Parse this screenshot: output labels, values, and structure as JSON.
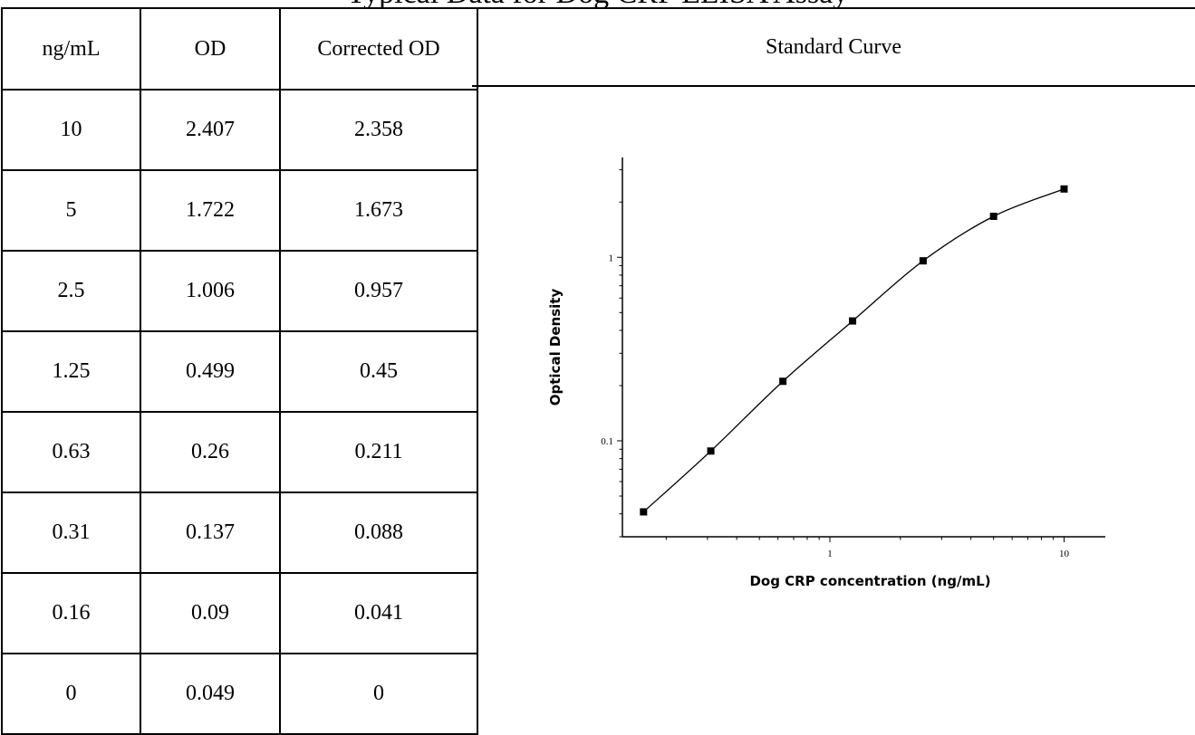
{
  "title": "Typical Data for Dog CRP ELISA Assay",
  "table": {
    "headers": [
      "ng/mL",
      "OD",
      "Corrected OD"
    ],
    "rows": [
      [
        "10",
        "2.407",
        "2.358"
      ],
      [
        "5",
        "1.722",
        "1.673"
      ],
      [
        "2.5",
        "1.006",
        "0.957"
      ],
      [
        "1.25",
        "0.499",
        "0.45"
      ],
      [
        "0.63",
        "0.26",
        "0.211"
      ],
      [
        "0.31",
        "0.137",
        "0.088"
      ],
      [
        "0.16",
        "0.09",
        "0.041"
      ],
      [
        "0",
        "0.049",
        "0"
      ]
    ]
  },
  "curve_header": "Standard Curve",
  "chart_data": {
    "type": "scatter",
    "title": "Standard Curve",
    "xlabel": "Dog CRP concentration (ng/mL)",
    "ylabel": "Optical Density",
    "xscale": "log",
    "yscale": "log",
    "xlim": [
      0.13,
      15
    ],
    "ylim": [
      0.03,
      3.5
    ],
    "xticks": [
      1,
      10
    ],
    "xtick_labels": [
      "1",
      "10"
    ],
    "yticks": [
      0.1,
      1
    ],
    "ytick_labels": [
      "0.1",
      "1"
    ],
    "grid": false,
    "marker": "square",
    "fit": "4-parameter logistic curve",
    "series": [
      {
        "x": [
          10,
          5,
          2.5,
          1.25,
          0.63,
          0.31,
          0.16
        ],
        "y": [
          2.358,
          1.673,
          0.957,
          0.45,
          0.211,
          0.088,
          0.041
        ]
      }
    ]
  }
}
